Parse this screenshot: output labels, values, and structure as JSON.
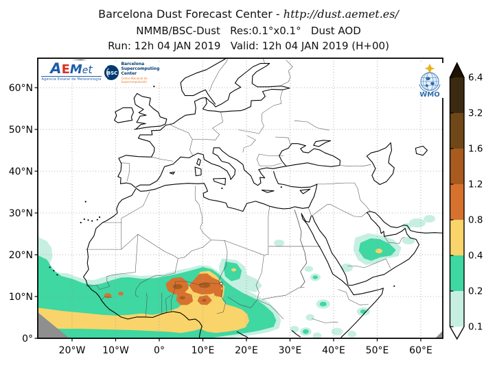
{
  "header": {
    "line1_prefix": "Barcelona Dust Forecast Center - ",
    "line1_url": "http://dust.aemet.es/",
    "line2": "NMMB/BSC-Dust   Res:0.1°x0.1°   Dust AOD",
    "line3": "Run: 12h 04 JAN 2019   Valid: 12h 04 JAN 2019 (H+00)"
  },
  "logos": {
    "aemet": {
      "l1": "A",
      "l2": "E",
      "l3": "M",
      "l4": "e",
      "l5": "t",
      "sub": "Agencia Estatal de Meteorología"
    },
    "bsc": {
      "circle": "BSC",
      "line1": "Barcelona",
      "line2": "Supercomputing",
      "line3": "Center",
      "sub": "Centro Nacional de Supercomputación"
    },
    "wmo": {
      "label": "WMO"
    }
  },
  "map": {
    "lat_ticks": [
      {
        "label": "60°N",
        "deg": 60
      },
      {
        "label": "50°N",
        "deg": 50
      },
      {
        "label": "40°N",
        "deg": 40
      },
      {
        "label": "30°N",
        "deg": 30
      },
      {
        "label": "20°N",
        "deg": 20
      },
      {
        "label": "10°N",
        "deg": 10
      },
      {
        "label": "0°",
        "deg": 0
      }
    ],
    "lon_ticks": [
      {
        "label": "20°W",
        "deg": -20
      },
      {
        "label": "10°W",
        "deg": -10
      },
      {
        "label": "0°",
        "deg": 0
      },
      {
        "label": "10°E",
        "deg": 10
      },
      {
        "label": "20°E",
        "deg": 20
      },
      {
        "label": "30°E",
        "deg": 30
      },
      {
        "label": "40°E",
        "deg": 40
      },
      {
        "label": "50°E",
        "deg": 50
      },
      {
        "label": "60°E",
        "deg": 60
      }
    ]
  },
  "colorbar": {
    "levels_bottom_to_top": [
      "0.1",
      "0.2",
      "0.4",
      "0.8",
      "1.2",
      "1.6",
      "3.2",
      "6.4"
    ],
    "band_colors_bottom_to_top": [
      "#c6efe2",
      "#3fd7a2",
      "#f9d46a",
      "#d7722e",
      "#a95a1e",
      "#6f4719",
      "#3b2911"
    ],
    "over_color": "#1f1203",
    "under_color": "#ffffff"
  },
  "chart_data": {
    "type": "filled_contour_map",
    "variable": "Dust AOD",
    "model": "NMMB/BSC-Dust",
    "resolution": "0.1°x0.1°",
    "run": "12h 04 JAN 2019",
    "valid": "12h 04 JAN 2019 (H+00)",
    "lead": "H+00",
    "lon_range": [
      -28,
      65
    ],
    "lat_range": [
      0,
      67
    ],
    "aod_levels": [
      0.1,
      0.2,
      0.4,
      0.8,
      1.2,
      1.6,
      3.2,
      6.4
    ],
    "level_colors": {
      "0.1": "#c6efe2",
      "0.2": "#3fd7a2",
      "0.4": "#f9d46a",
      "0.8": "#d7722e",
      "1.2": "#a95a1e"
    },
    "regions": [
      {
        "aod": 0.1,
        "poly": [
          [
            -28,
            24
          ],
          [
            -26,
            23
          ],
          [
            -25,
            21.5
          ],
          [
            -24.8,
            19.5
          ],
          [
            -25.6,
            17.5
          ],
          [
            -23.6,
            15.4
          ],
          [
            -21,
            15.2
          ],
          [
            -19,
            14.4
          ],
          [
            -17,
            13.7
          ],
          [
            -15,
            13.6
          ],
          [
            -12.6,
            14.4
          ],
          [
            -10,
            15.1
          ],
          [
            -7.6,
            15.1
          ],
          [
            -4.6,
            14.6
          ],
          [
            -1.6,
            14.7
          ],
          [
            1.4,
            15.2
          ],
          [
            4.4,
            16
          ],
          [
            7.4,
            16.6
          ],
          [
            9.4,
            17.2
          ],
          [
            11.4,
            17
          ],
          [
            13,
            16
          ],
          [
            15,
            14.4
          ],
          [
            17,
            12.9
          ],
          [
            19.4,
            11.5
          ],
          [
            22.4,
            9.9
          ],
          [
            25,
            8.3
          ],
          [
            26.8,
            6.3
          ],
          [
            27.6,
            4.3
          ],
          [
            27.2,
            2.6
          ],
          [
            25,
            1.8
          ],
          [
            22,
            1.2
          ],
          [
            18,
            0.6
          ],
          [
            14,
            0.2
          ],
          [
            10,
            -0.6
          ],
          [
            5,
            -1
          ],
          [
            -28,
            -1
          ]
        ]
      },
      {
        "aod": 0.1,
        "poly": [
          [
            14.6,
            18.8
          ],
          [
            17.6,
            18.4
          ],
          [
            19.4,
            17
          ],
          [
            19.8,
            15
          ],
          [
            22,
            14
          ],
          [
            23.2,
            12.6
          ],
          [
            22,
            11.4
          ],
          [
            19.4,
            11.9
          ],
          [
            17.2,
            12.7
          ],
          [
            15.2,
            13.3
          ],
          [
            14.2,
            14.9
          ],
          [
            14,
            17.2
          ]
        ]
      },
      {
        "aod": 0.1,
        "poly": [
          [
            45.2,
            23.8
          ],
          [
            48,
            24.8
          ],
          [
            51,
            24.3
          ],
          [
            53.6,
            23.3
          ],
          [
            55.2,
            21.6
          ],
          [
            54.6,
            19.9
          ],
          [
            52,
            19.4
          ],
          [
            49.6,
            18.3
          ],
          [
            47.4,
            17.9
          ],
          [
            45.8,
            19
          ],
          [
            44.8,
            21.2
          ]
        ]
      },
      {
        "aod": 0.1,
        "ellipse": [
          35.8,
          14.6,
          1.2,
          0.9
        ]
      },
      {
        "aod": 0.1,
        "ellipse": [
          37.6,
          8.2,
          1.6,
          1.1
        ]
      },
      {
        "aod": 0.1,
        "ellipse": [
          34.6,
          5,
          1,
          0.8
        ]
      },
      {
        "aod": 0.1,
        "ellipse": [
          40.8,
          1.6,
          1.3,
          0.9
        ]
      },
      {
        "aod": 0.1,
        "ellipse": [
          46.8,
          6.4,
          1.5,
          1
        ]
      },
      {
        "aod": 0.1,
        "ellipse": [
          44.2,
          1,
          1,
          0.8
        ]
      },
      {
        "aod": 0.1,
        "ellipse": [
          33.6,
          1.6,
          1.3,
          1
        ]
      },
      {
        "aod": 0.1,
        "ellipse": [
          36.2,
          0.6,
          1,
          0.8
        ]
      },
      {
        "aod": 0.1,
        "ellipse": [
          12,
          0.8,
          1.7,
          1.1
        ]
      },
      {
        "aod": 0.1,
        "ellipse": [
          16,
          0.5,
          1.3,
          0.9
        ]
      },
      {
        "aod": 0.1,
        "ellipse": [
          31,
          2.2,
          1,
          0.8
        ]
      },
      {
        "aod": 0.1,
        "ellipse": [
          57.2,
          23.4,
          1.5,
          0.9
        ]
      },
      {
        "aod": 0.1,
        "ellipse": [
          43,
          16.9,
          1.4,
          1
        ]
      },
      {
        "aod": 0.1,
        "ellipse": [
          59.2,
          27.6,
          1.9,
          1.1
        ]
      },
      {
        "aod": 0.1,
        "ellipse": [
          62,
          28.6,
          1.3,
          0.9
        ]
      },
      {
        "aod": 0.1,
        "ellipse": [
          56.8,
          26.8,
          1.1,
          0.8
        ]
      },
      {
        "aod": 0.1,
        "ellipse": [
          27.5,
          22.8,
          1.2,
          0.8
        ]
      },
      {
        "aod": 0.1,
        "ellipse": [
          34.3,
          16.6,
          1,
          0.7
        ]
      },
      {
        "aod": 0.2,
        "poly": [
          [
            -28,
            19.6
          ],
          [
            -26,
            18.6
          ],
          [
            -24.6,
            16.2
          ],
          [
            -22.6,
            14.6
          ],
          [
            -20,
            13.9
          ],
          [
            -17.6,
            12.9
          ],
          [
            -15,
            12.4
          ],
          [
            -12.8,
            12.9
          ],
          [
            -10.8,
            13.6
          ],
          [
            -8.8,
            14.2
          ],
          [
            -6.8,
            14.3
          ],
          [
            -4,
            13.9
          ],
          [
            -1,
            14.1
          ],
          [
            2,
            14.6
          ],
          [
            5,
            15.3
          ],
          [
            8,
            16.1
          ],
          [
            10,
            16.7
          ],
          [
            12,
            16.2
          ],
          [
            13.6,
            15
          ],
          [
            14.8,
            13.6
          ],
          [
            16.6,
            12.1
          ],
          [
            19,
            10.6
          ],
          [
            22,
            9.1
          ],
          [
            24,
            7.6
          ],
          [
            25.8,
            5.9
          ],
          [
            26.5,
            4.3
          ],
          [
            26,
            3
          ],
          [
            23,
            2.2
          ],
          [
            20,
            1.6
          ],
          [
            15,
            0.9
          ],
          [
            10,
            0.1
          ],
          [
            5,
            -1
          ],
          [
            -28,
            -1
          ]
        ]
      },
      {
        "aod": 0.2,
        "poly": [
          [
            15.4,
            18
          ],
          [
            17.6,
            17.6
          ],
          [
            18.6,
            16.1
          ],
          [
            18.2,
            14.5
          ],
          [
            16.6,
            14
          ],
          [
            15.4,
            15
          ],
          [
            15.1,
            16.6
          ]
        ]
      },
      {
        "aod": 0.2,
        "poly": [
          [
            46.4,
            22.6
          ],
          [
            48.6,
            23.6
          ],
          [
            50.6,
            23.4
          ],
          [
            52.6,
            22.4
          ],
          [
            53.9,
            21.1
          ],
          [
            53,
            20.1
          ],
          [
            50.6,
            19.7
          ],
          [
            48.6,
            18.9
          ],
          [
            47.2,
            19.4
          ],
          [
            46.1,
            21
          ]
        ]
      },
      {
        "aod": 0.2,
        "ellipse": [
          37.6,
          8.2,
          0.8,
          0.55
        ]
      },
      {
        "aod": 0.2,
        "ellipse": [
          35.8,
          14.6,
          0.6,
          0.45
        ]
      },
      {
        "aod": 0.2,
        "ellipse": [
          46.8,
          6.4,
          0.7,
          0.5
        ]
      },
      {
        "aod": 0.2,
        "ellipse": [
          12,
          0.9,
          0.9,
          0.6
        ]
      },
      {
        "aod": 0.2,
        "ellipse": [
          33.6,
          1.6,
          0.7,
          0.55
        ]
      },
      {
        "aod": 0.4,
        "poly": [
          [
            -28,
            7
          ],
          [
            -25,
            6.6
          ],
          [
            -22,
            6.2
          ],
          [
            -19,
            5.9
          ],
          [
            -16,
            5.6
          ],
          [
            -13,
            5.3
          ],
          [
            -10,
            5.1
          ],
          [
            -7,
            5.3
          ],
          [
            -4,
            5.6
          ],
          [
            -1.5,
            5.3
          ],
          [
            0.5,
            5.7
          ],
          [
            2.5,
            6.3
          ],
          [
            4.5,
            7
          ],
          [
            5.6,
            8.2
          ],
          [
            6,
            9.8
          ],
          [
            6.3,
            11.2
          ],
          [
            7.5,
            12.8
          ],
          [
            8.6,
            14.2
          ],
          [
            9.6,
            15.6
          ],
          [
            11.4,
            15.8
          ],
          [
            12.8,
            14.8
          ],
          [
            13.8,
            13.6
          ],
          [
            14.7,
            12.2
          ],
          [
            14.5,
            10.6
          ],
          [
            14.1,
            9.2
          ],
          [
            15.2,
            7.8
          ],
          [
            17,
            7.3
          ],
          [
            18.8,
            6.6
          ],
          [
            19.9,
            5.6
          ],
          [
            20.3,
            4.2
          ],
          [
            19.6,
            2.9
          ],
          [
            17.8,
            2.3
          ],
          [
            15.5,
            1.9
          ],
          [
            13,
            1.6
          ],
          [
            11,
            1.9
          ],
          [
            9.4,
            2.6
          ],
          [
            7.8,
            2.1
          ],
          [
            5,
            1.6
          ],
          [
            2,
            1.9
          ],
          [
            -2,
            2.1
          ],
          [
            -6,
            2.3
          ],
          [
            -10,
            2.4
          ],
          [
            -14,
            2.5
          ],
          [
            -18,
            2.6
          ],
          [
            -22,
            2.6
          ],
          [
            -25,
            2.7
          ],
          [
            -28,
            2.9
          ]
        ]
      },
      {
        "aod": 0.4,
        "ellipse": [
          17.1,
          16.4,
          0.55,
          0.4
        ]
      },
      {
        "aod": 0.4,
        "ellipse": [
          50.4,
          20.9,
          0.8,
          0.55
        ]
      },
      {
        "aod": 0.8,
        "poly": [
          [
            7.2,
            12.6
          ],
          [
            8.2,
            13.8
          ],
          [
            9.3,
            15.1
          ],
          [
            10.9,
            15.2
          ],
          [
            12,
            14.3
          ],
          [
            13.6,
            13.5
          ],
          [
            14.3,
            12.5
          ],
          [
            13.4,
            11.4
          ],
          [
            11.8,
            10.9
          ],
          [
            9.8,
            10.8
          ],
          [
            8,
            11.4
          ]
        ]
      },
      {
        "aod": 0.8,
        "poly": [
          [
            1.8,
            13
          ],
          [
            3.2,
            14.1
          ],
          [
            5,
            14.3
          ],
          [
            6.2,
            13.3
          ],
          [
            6.4,
            12
          ],
          [
            5.4,
            11
          ],
          [
            3.6,
            10.8
          ],
          [
            2.2,
            11.6
          ]
        ]
      },
      {
        "aod": 0.8,
        "poly": [
          [
            4.4,
            10.3
          ],
          [
            5.8,
            10.7
          ],
          [
            7.2,
            10.2
          ],
          [
            7.4,
            9
          ],
          [
            6.4,
            8.3
          ],
          [
            5,
            8.3
          ],
          [
            4.2,
            9.2
          ]
        ]
      },
      {
        "aod": 0.8,
        "poly": [
          [
            9.4,
            9.7
          ],
          [
            10.9,
            10
          ],
          [
            11.7,
            9.1
          ],
          [
            10.9,
            8.3
          ],
          [
            9.7,
            8.4
          ],
          [
            9.1,
            9
          ]
        ]
      },
      {
        "aod": 0.8,
        "poly": [
          [
            12.9,
            11.7
          ],
          [
            14.3,
            11.4
          ],
          [
            14.1,
            10.2
          ],
          [
            12.9,
            10.5
          ]
        ]
      },
      {
        "aod": 0.8,
        "ellipse": [
          -11.8,
          10.2,
          0.8,
          0.6
        ]
      },
      {
        "aod": 0.8,
        "ellipse": [
          -8.8,
          10.7,
          0.6,
          0.45
        ]
      },
      {
        "aod": 1.2,
        "ellipse": [
          4.2,
          12.4,
          1.1,
          0.6
        ]
      },
      {
        "aod": 1.2,
        "ellipse": [
          10.4,
          12.7,
          1.3,
          0.65
        ]
      },
      {
        "aod": 1.2,
        "ellipse": [
          5.3,
          9.7,
          0.65,
          0.4
        ]
      },
      {
        "aod": 1.2,
        "ellipse": [
          10.3,
          9.1,
          0.5,
          0.35
        ]
      }
    ]
  }
}
